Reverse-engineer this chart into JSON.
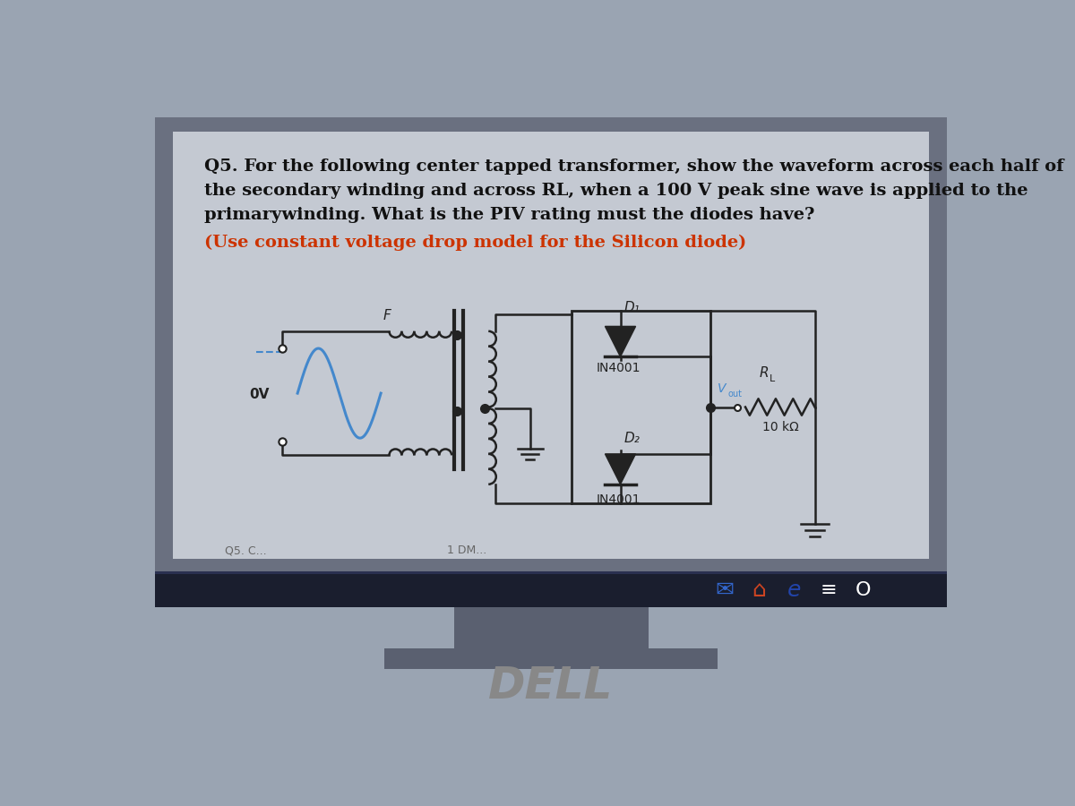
{
  "bg_color": "#9aa4b2",
  "outer_frame_color": "#6a7080",
  "screen_bg": "#c4c9d2",
  "taskbar_color": "#1a1e2e",
  "taskbar_strip_color": "#2a3050",
  "stand_color": "#5a6070",
  "text_color": "#111111",
  "subtitle_color": "#cc3300",
  "sine_color": "#4488cc",
  "circuit_color": "#222222",
  "dell_color": "#888888",
  "line1": "Q5. For the following center tapped transformer, show the waveform across each half of",
  "line2": "the secondary winding and across RL, when a 100 V peak sine wave is applied to the",
  "line3": "primarywinding. What is the PIV rating must the diodes have?",
  "line4": "(Use constant voltage drop model for the Silicon diode)"
}
